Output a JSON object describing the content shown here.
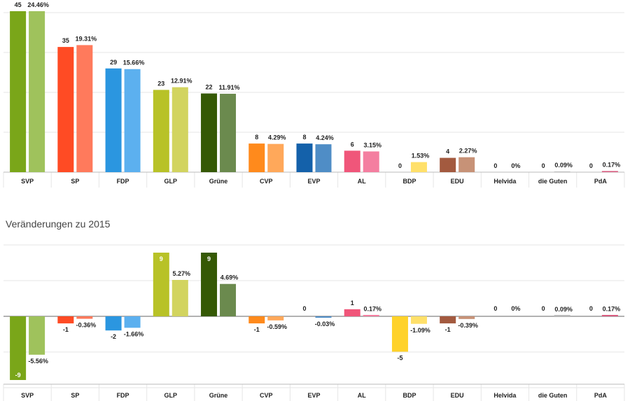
{
  "chart_data": [
    {
      "type": "bar",
      "title": "",
      "categories": [
        "SVP",
        "SP",
        "FDP",
        "GLP",
        "Grüne",
        "CVP",
        "EVP",
        "AL",
        "BDP",
        "EDU",
        "Helvida",
        "die Guten",
        "PdA"
      ],
      "series": [
        {
          "values": [
            45,
            35,
            29,
            23,
            22,
            8,
            8,
            6,
            0,
            4,
            0,
            0,
            0
          ],
          "labels": [
            "45",
            "35",
            "29",
            "23",
            "22",
            "8",
            "8",
            "6",
            "0",
            "4",
            "0",
            "0",
            "0"
          ]
        },
        {
          "values": [
            24.46,
            19.31,
            15.66,
            12.91,
            11.91,
            4.29,
            4.24,
            3.15,
            1.53,
            2.27,
            0,
            0.09,
            0.17
          ],
          "labels": [
            "24.46%",
            "19.31%",
            "15.66%",
            "12.91%",
            "11.91%",
            "4.29%",
            "4.24%",
            "3.15%",
            "1.53%",
            "2.27%",
            "0%",
            "0.09%",
            "0.17%"
          ]
        }
      ]
    },
    {
      "type": "bar",
      "title": "Veränderungen zu 2015",
      "categories": [
        "SVP",
        "SP",
        "FDP",
        "GLP",
        "Grüne",
        "CVP",
        "EVP",
        "AL",
        "BDP",
        "EDU",
        "Helvida",
        "die Guten",
        "PdA"
      ],
      "series": [
        {
          "values": [
            -9,
            -1,
            -2,
            9,
            9,
            -1,
            0,
            1,
            -5,
            -1,
            0,
            0,
            0
          ],
          "labels": [
            "-9",
            "-1",
            "-2",
            "9",
            "9",
            "-1",
            "0",
            "1",
            "-5",
            "-1",
            "0",
            "0",
            "0"
          ]
        },
        {
          "values": [
            -5.56,
            -0.36,
            -1.66,
            5.27,
            4.69,
            -0.59,
            -0.03,
            0.17,
            -1.09,
            -0.39,
            0,
            0.09,
            0.17
          ],
          "labels": [
            "-5.56%",
            "-0.36%",
            "-1.66%",
            "5.27%",
            "4.69%",
            "-0.59%",
            "-0.03%",
            "0.17%",
            "-1.09%",
            "-0.39%",
            "0%",
            "0.09%",
            "0.17%"
          ]
        }
      ]
    }
  ],
  "colors": {
    "seats": [
      "#7aa619",
      "#ff4b24",
      "#2b96e0",
      "#b8c227",
      "#355905",
      "#ff8a1c",
      "#1461aa",
      "#f0567a",
      "#ffd22a",
      "#a35a3f",
      "#999999",
      "#999999",
      "#c01a4a"
    ],
    "votes": [
      "#9fc25c",
      "#ff7a5c",
      "#5cb0ef",
      "#d2d45f",
      "#6b8a4e",
      "#ffa85a",
      "#4f8dc6",
      "#f47ea0",
      "#ffe06a",
      "#c79277",
      "#bbbbbb",
      "#bbbbbb",
      "#d85c80"
    ],
    "grid": "#e6e6e6",
    "axis": "#bbbbbb"
  }
}
